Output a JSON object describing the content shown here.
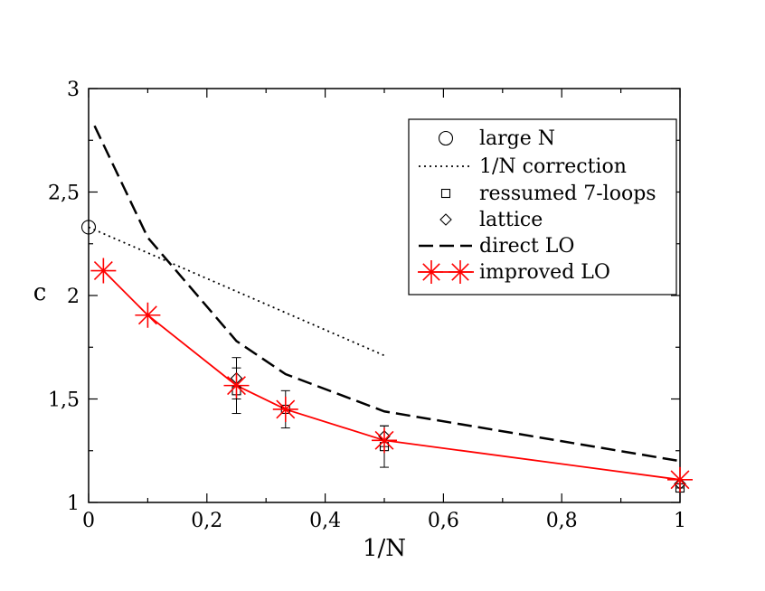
{
  "chart_data": {
    "type": "line",
    "xlabel": "1/N",
    "ylabel": "c",
    "xlim": [
      0,
      1
    ],
    "ylim": [
      1,
      3
    ],
    "x_ticks": [
      "0",
      "0,2",
      "0,4",
      "0,6",
      "0,8",
      "1"
    ],
    "y_ticks": [
      "1",
      "1,5",
      "2",
      "2,5",
      "3"
    ],
    "legend_position": "top-right",
    "colors": {
      "improved": "#ff0000",
      "black": "#000000"
    },
    "series": [
      {
        "name": "large N",
        "style": "circle-marker",
        "points": [
          [
            0,
            2.33
          ]
        ]
      },
      {
        "name": "1/N correction",
        "style": "dotted-line",
        "points": [
          [
            0,
            2.33
          ],
          [
            0.5,
            1.71
          ]
        ]
      },
      {
        "name": "ressumed 7-loops",
        "style": "square-marker-errorbars",
        "points": [
          [
            0.25,
            1.54,
            0.11
          ],
          [
            0.333,
            1.45,
            0.09
          ],
          [
            0.5,
            1.27,
            0.1
          ],
          [
            1.0,
            1.07,
            0.02
          ]
        ]
      },
      {
        "name": "lattice",
        "style": "diamond-marker-errorbars",
        "points": [
          [
            0.25,
            1.6,
            0.1
          ],
          [
            0.5,
            1.32,
            0.05
          ],
          [
            1.0,
            1.09,
            0.02
          ]
        ]
      },
      {
        "name": "direct LO",
        "style": "dashed-line",
        "points": [
          [
            0.01,
            2.82
          ],
          [
            0.1,
            2.28
          ],
          [
            0.25,
            1.78
          ],
          [
            0.333,
            1.62
          ],
          [
            0.5,
            1.44
          ],
          [
            1.0,
            1.2
          ]
        ]
      },
      {
        "name": "improved LO",
        "style": "red-line-star-markers",
        "points": [
          [
            0.025,
            2.12
          ],
          [
            0.1,
            1.905
          ],
          [
            0.25,
            1.565
          ],
          [
            0.333,
            1.45
          ],
          [
            0.5,
            1.3
          ],
          [
            1.0,
            1.11
          ]
        ]
      }
    ]
  }
}
